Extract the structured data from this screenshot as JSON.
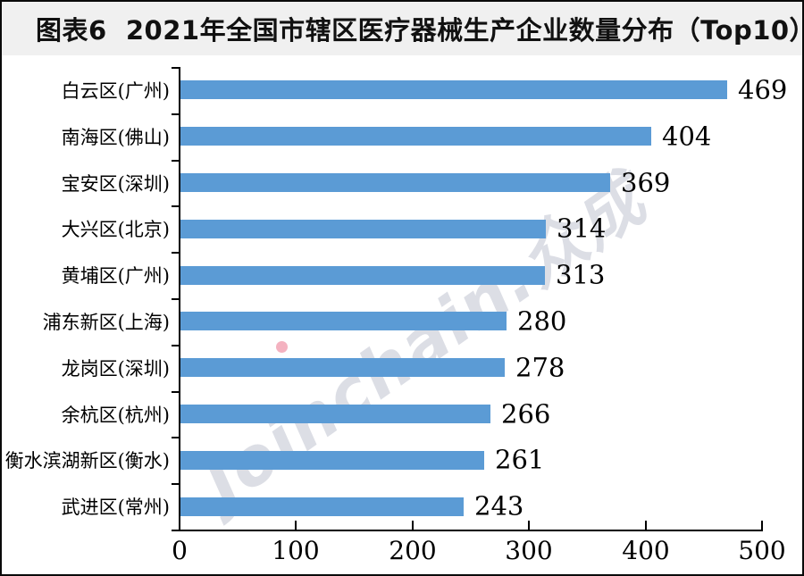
{
  "title": "图表6  2021年全国市辖区医疗器械生产企业数量分布（Top10）",
  "watermark": {
    "text": "Joinchain.众成"
  },
  "chart_data": {
    "type": "bar",
    "orientation": "horizontal",
    "title": "图表6 2021年全国市辖区医疗器械生产企业数量分布（Top10）",
    "categories": [
      "白云区(广州)",
      "南海区(佛山)",
      "宝安区(深圳)",
      "大兴区(北京)",
      "黄埔区(广州)",
      "浦东新区(上海)",
      "龙岗区(深圳)",
      "余杭区(杭州)",
      "衡水滨湖新区(衡水)",
      "武进区(常州)"
    ],
    "values": [
      469,
      404,
      369,
      314,
      313,
      280,
      278,
      266,
      261,
      243
    ],
    "xlim": [
      0,
      500
    ],
    "x_ticks": [
      0,
      100,
      200,
      300,
      400,
      500
    ],
    "bar_color": "#5B9BD5",
    "value_labels": true,
    "grid": false,
    "legend_position": "none"
  }
}
